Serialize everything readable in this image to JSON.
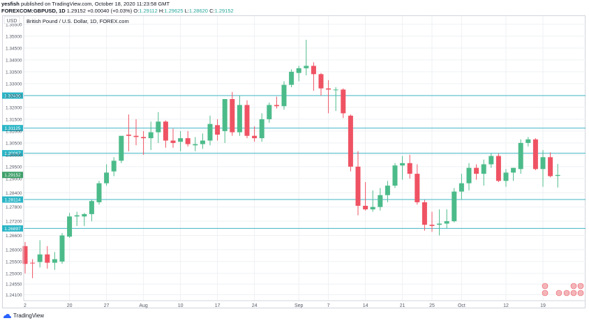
{
  "header": {
    "line1_author": "yesfish",
    "line1_rest": "published on TradingView.com, October 18, 2020 11:23:58 GMT",
    "symbol": "FOREXCOM:GBPUSD, 1D",
    "change": "1.29152 +0.00040 (+0.03%)",
    "o_label": "O:",
    "o_value": "1.29112",
    "h_label": "H:",
    "h_value": "1.29625",
    "l_label": "L:",
    "l_value": "1.28620",
    "c_label": "C:",
    "c_value": "1.29152"
  },
  "footer": {
    "brand": "TradingView"
  },
  "colors": {
    "up": "#4cbb8a",
    "down": "#ef5363",
    "hline": "#41b4c4",
    "label_bg": "#2bb5c6",
    "price_bg": "#3fa06a",
    "grid": "#eef0f3",
    "axis_text": "#555a66"
  },
  "chart_data": {
    "type": "candlestick",
    "title": "British Pound / U.S. Dollar, 1D, FOREX.com",
    "currency": "USD",
    "grid": true,
    "ylim": [
      1.2385,
      1.3585
    ],
    "y_ticks": [
      "1.24100",
      "1.24550",
      "1.25000",
      "1.25500",
      "1.26000",
      "1.26600",
      "1.27200",
      "1.27800",
      "1.28400",
      "1.29000",
      "1.29500",
      "1.30000",
      "1.30500",
      "1.31000",
      "1.31500",
      "1.32000",
      "1.32500",
      "1.33000",
      "1.33500",
      "1.34000",
      "1.34500",
      "1.35000",
      "1.35500"
    ],
    "x_ticks": [
      {
        "label": "20",
        "index": 6
      },
      {
        "label": "27",
        "index": 11
      },
      {
        "label": "Aug",
        "index": 16
      },
      {
        "label": "10",
        "index": 21
      },
      {
        "label": "17",
        "index": 26
      },
      {
        "label": "24",
        "index": 31
      },
      {
        "label": "Sep",
        "index": 37
      },
      {
        "label": "7",
        "index": 41
      },
      {
        "label": "14",
        "index": 46
      },
      {
        "label": "21",
        "index": 51
      },
      {
        "label": "25",
        "index": 55
      },
      {
        "label": "Oct",
        "index": 59
      },
      {
        "label": "12",
        "index": 65
      },
      {
        "label": "19",
        "index": 70
      }
    ],
    "x_partial_label": {
      "label": "2",
      "index": 0
    },
    "horizontal_levels": [
      {
        "value": 1.32496,
        "label": "1.32496"
      },
      {
        "value": 1.31125,
        "label": "1.31125"
      },
      {
        "value": 1.30067,
        "label": "1.30067"
      },
      {
        "value": 1.28114,
        "label": "1.28114"
      },
      {
        "value": 1.26897,
        "label": "1.26897"
      }
    ],
    "last_price": {
      "value": 1.29152,
      "label": "1.29152"
    },
    "slots": 72,
    "candles": [
      {
        "i": 0,
        "o": 1.2615,
        "h": 1.2632,
        "l": 1.25,
        "c": 1.254
      },
      {
        "i": 1,
        "o": 1.2545,
        "h": 1.256,
        "l": 1.248,
        "c": 1.2542
      },
      {
        "i": 2,
        "o": 1.2548,
        "h": 1.264,
        "l": 1.2525,
        "c": 1.258
      },
      {
        "i": 3,
        "o": 1.258,
        "h": 1.2615,
        "l": 1.252,
        "c": 1.2545
      },
      {
        "i": 4,
        "o": 1.2545,
        "h": 1.259,
        "l": 1.2515,
        "c": 1.256
      },
      {
        "i": 5,
        "o": 1.255,
        "h": 1.267,
        "l": 1.254,
        "c": 1.266
      },
      {
        "i": 6,
        "o": 1.2655,
        "h": 1.2755,
        "l": 1.265,
        "c": 1.274
      },
      {
        "i": 7,
        "o": 1.274,
        "h": 1.276,
        "l": 1.27,
        "c": 1.2745
      },
      {
        "i": 8,
        "o": 1.274,
        "h": 1.2755,
        "l": 1.27,
        "c": 1.275
      },
      {
        "i": 9,
        "o": 1.275,
        "h": 1.281,
        "l": 1.272,
        "c": 1.2805
      },
      {
        "i": 10,
        "o": 1.28,
        "h": 1.289,
        "l": 1.279,
        "c": 1.288
      },
      {
        "i": 11,
        "o": 1.288,
        "h": 1.296,
        "l": 1.287,
        "c": 1.2925
      },
      {
        "i": 12,
        "o": 1.293,
        "h": 1.299,
        "l": 1.291,
        "c": 1.2975
      },
      {
        "i": 13,
        "o": 1.2975,
        "h": 1.307,
        "l": 1.2965,
        "c": 1.308
      },
      {
        "i": 14,
        "o": 1.3085,
        "h": 1.317,
        "l": 1.3015,
        "c": 1.308
      },
      {
        "i": 15,
        "o": 1.308,
        "h": 1.315,
        "l": 1.304,
        "c": 1.3075
      },
      {
        "i": 16,
        "o": 1.3075,
        "h": 1.31,
        "l": 1.3,
        "c": 1.307
      },
      {
        "i": 17,
        "o": 1.307,
        "h": 1.314,
        "l": 1.302,
        "c": 1.3095
      },
      {
        "i": 18,
        "o": 1.3095,
        "h": 1.318,
        "l": 1.305,
        "c": 1.314
      },
      {
        "i": 19,
        "o": 1.314,
        "h": 1.3145,
        "l": 1.303,
        "c": 1.306
      },
      {
        "i": 20,
        "o": 1.306,
        "h": 1.311,
        "l": 1.303,
        "c": 1.305
      },
      {
        "i": 21,
        "o": 1.3055,
        "h": 1.31,
        "l": 1.3015,
        "c": 1.307
      },
      {
        "i": 22,
        "o": 1.307,
        "h": 1.31,
        "l": 1.3035,
        "c": 1.3045
      },
      {
        "i": 23,
        "o": 1.304,
        "h": 1.3075,
        "l": 1.3015,
        "c": 1.3045
      },
      {
        "i": 24,
        "o": 1.3045,
        "h": 1.309,
        "l": 1.3025,
        "c": 1.306
      },
      {
        "i": 25,
        "o": 1.306,
        "h": 1.3165,
        "l": 1.304,
        "c": 1.313
      },
      {
        "i": 26,
        "o": 1.3125,
        "h": 1.315,
        "l": 1.306,
        "c": 1.3085
      },
      {
        "i": 27,
        "o": 1.31,
        "h": 1.3235,
        "l": 1.305,
        "c": 1.3235
      },
      {
        "i": 28,
        "o": 1.3235,
        "h": 1.3265,
        "l": 1.308,
        "c": 1.3095
      },
      {
        "i": 29,
        "o": 1.3095,
        "h": 1.325,
        "l": 1.308,
        "c": 1.321
      },
      {
        "i": 30,
        "o": 1.321,
        "h": 1.323,
        "l": 1.307,
        "c": 1.308
      },
      {
        "i": 31,
        "o": 1.308,
        "h": 1.312,
        "l": 1.3055,
        "c": 1.307
      },
      {
        "i": 32,
        "o": 1.307,
        "h": 1.3175,
        "l": 1.3055,
        "c": 1.315
      },
      {
        "i": 33,
        "o": 1.315,
        "h": 1.322,
        "l": 1.3135,
        "c": 1.321
      },
      {
        "i": 34,
        "o": 1.321,
        "h": 1.3245,
        "l": 1.3195,
        "c": 1.3205
      },
      {
        "i": 35,
        "o": 1.3205,
        "h": 1.331,
        "l": 1.319,
        "c": 1.3295
      },
      {
        "i": 36,
        "o": 1.3295,
        "h": 1.336,
        "l": 1.3285,
        "c": 1.335
      },
      {
        "i": 37,
        "o": 1.3345,
        "h": 1.3375,
        "l": 1.331,
        "c": 1.3365
      },
      {
        "i": 38,
        "o": 1.3365,
        "h": 1.3485,
        "l": 1.3335,
        "c": 1.3375
      },
      {
        "i": 39,
        "o": 1.3375,
        "h": 1.339,
        "l": 1.327,
        "c": 1.334
      },
      {
        "i": 40,
        "o": 1.334,
        "h": 1.3345,
        "l": 1.325,
        "c": 1.328
      },
      {
        "i": 41,
        "o": 1.328,
        "h": 1.3315,
        "l": 1.3175,
        "c": 1.3275
      },
      {
        "i": 42,
        "o": 1.3275,
        "h": 1.3285,
        "l": 1.3185,
        "c": 1.3275
      },
      {
        "i": 43,
        "o": 1.3275,
        "h": 1.328,
        "l": 1.3155,
        "c": 1.3175
      },
      {
        "i": 44,
        "o": 1.3165,
        "h": 1.317,
        "l": 1.293,
        "c": 1.295
      },
      {
        "i": 45,
        "o": 1.295,
        "h": 1.3015,
        "l": 1.2745,
        "c": 1.2785
      },
      {
        "i": 46,
        "o": 1.2785,
        "h": 1.2885,
        "l": 1.2765,
        "c": 1.277
      },
      {
        "i": 47,
        "o": 1.277,
        "h": 1.285,
        "l": 1.276,
        "c": 1.278
      },
      {
        "i": 48,
        "o": 1.278,
        "h": 1.286,
        "l": 1.2765,
        "c": 1.283
      },
      {
        "i": 49,
        "o": 1.283,
        "h": 1.289,
        "l": 1.28,
        "c": 1.287
      },
      {
        "i": 50,
        "o": 1.287,
        "h": 1.2965,
        "l": 1.286,
        "c": 1.2955
      },
      {
        "i": 51,
        "o": 1.2955,
        "h": 1.2995,
        "l": 1.2895,
        "c": 1.2965
      },
      {
        "i": 52,
        "o": 1.2965,
        "h": 1.3,
        "l": 1.29,
        "c": 1.292
      },
      {
        "i": 53,
        "o": 1.292,
        "h": 1.296,
        "l": 1.279,
        "c": 1.28
      },
      {
        "i": 54,
        "o": 1.28,
        "h": 1.281,
        "l": 1.268,
        "c": 1.2705
      },
      {
        "i": 55,
        "o": 1.2705,
        "h": 1.276,
        "l": 1.2675,
        "c": 1.27
      },
      {
        "i": 56,
        "o": 1.2705,
        "h": 1.277,
        "l": 1.266,
        "c": 1.271
      },
      {
        "i": 57,
        "o": 1.271,
        "h": 1.277,
        "l": 1.269,
        "c": 1.272
      },
      {
        "i": 58,
        "o": 1.272,
        "h": 1.286,
        "l": 1.2715,
        "c": 1.2845
      },
      {
        "i": 59,
        "o": 1.2845,
        "h": 1.292,
        "l": 1.281,
        "c": 1.288
      },
      {
        "i": 60,
        "o": 1.288,
        "h": 1.2965,
        "l": 1.285,
        "c": 1.2945
      },
      {
        "i": 61,
        "o": 1.2945,
        "h": 1.296,
        "l": 1.2895,
        "c": 1.292
      },
      {
        "i": 62,
        "o": 1.292,
        "h": 1.298,
        "l": 1.287,
        "c": 1.296
      },
      {
        "i": 63,
        "o": 1.296,
        "h": 1.3005,
        "l": 1.2945,
        "c": 1.2995
      },
      {
        "i": 64,
        "o": 1.2995,
        "h": 1.3005,
        "l": 1.2885,
        "c": 1.289
      },
      {
        "i": 65,
        "o": 1.289,
        "h": 1.294,
        "l": 1.2865,
        "c": 1.2925
      },
      {
        "i": 66,
        "o": 1.2925,
        "h": 1.2945,
        "l": 1.289,
        "c": 1.2945
      },
      {
        "i": 67,
        "o": 1.294,
        "h": 1.3065,
        "l": 1.292,
        "c": 1.305
      },
      {
        "i": 68,
        "o": 1.305,
        "h": 1.3075,
        "l": 1.3035,
        "c": 1.3065
      },
      {
        "i": 69,
        "o": 1.3065,
        "h": 1.307,
        "l": 1.2935,
        "c": 1.294
      },
      {
        "i": 70,
        "o": 1.294,
        "h": 1.302,
        "l": 1.2865,
        "c": 1.299
      },
      {
        "i": 71,
        "o": 1.299,
        "h": 1.301,
        "l": 1.2905,
        "c": 1.291
      },
      {
        "i": 72,
        "o": 1.2911,
        "h": 1.2962,
        "l": 1.2862,
        "c": 1.2915
      }
    ]
  }
}
